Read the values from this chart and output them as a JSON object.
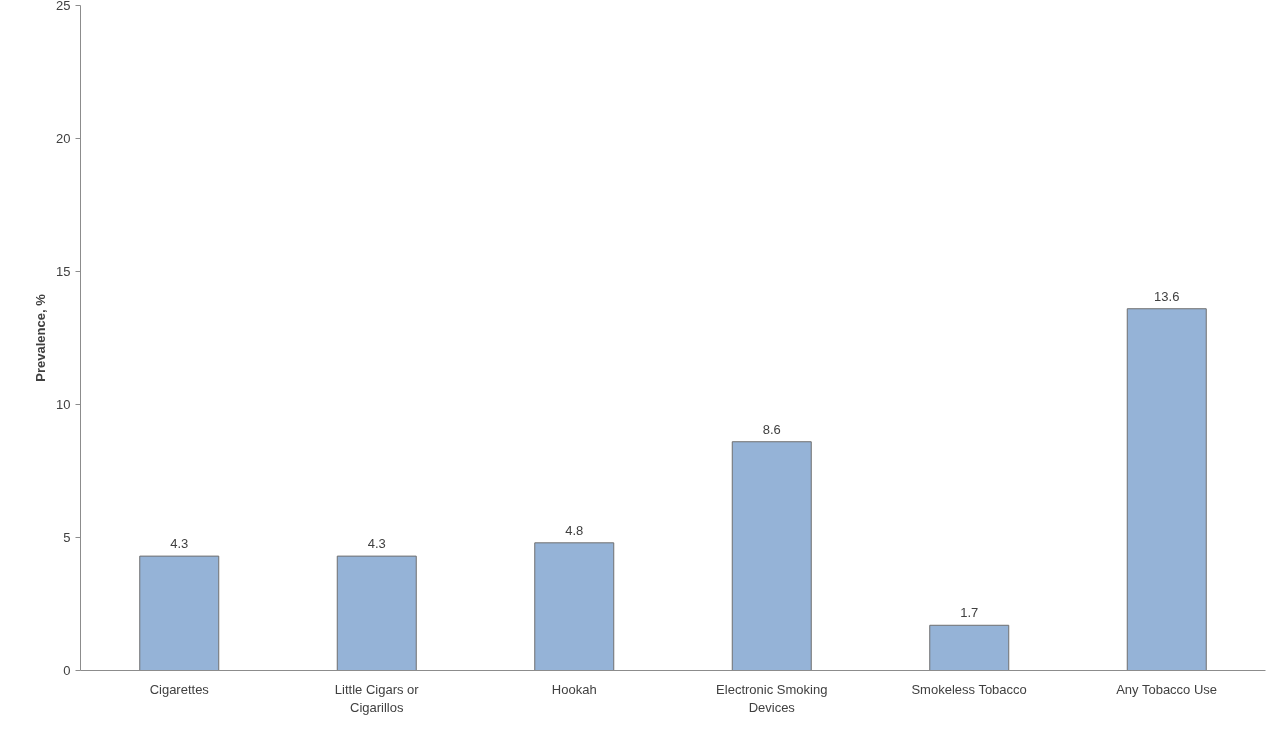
{
  "chart_data": {
    "type": "bar",
    "ylabel": "Prevalence, %",
    "categories": [
      "Cigarettes",
      "Little Cigars or Cigarillos",
      "Hookah",
      "Electronic Smoking Devices",
      "Smokeless Tobacco",
      "Any Tobacco Use"
    ],
    "values": [
      4.3,
      4.3,
      4.8,
      8.6,
      1.7,
      13.6
    ],
    "color": "#95b3d7",
    "ylim": [
      0,
      25
    ],
    "yticks": [
      0,
      5,
      10,
      15,
      20,
      25
    ],
    "grid": false,
    "data_labels": true
  }
}
